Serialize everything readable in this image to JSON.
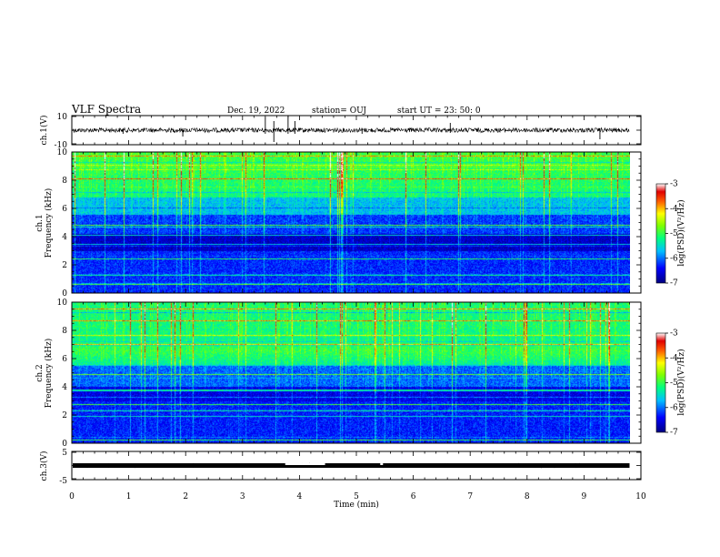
{
  "header": {
    "title": "VLF Spectra",
    "date": "Dec. 19, 2022",
    "station": "station= OUJ",
    "start": "start  UT =   23: 50: 0"
  },
  "chart_data": [
    {
      "type": "line",
      "panel": "ch1-waveform",
      "ylabel": "ch.1(V)",
      "ylim": [
        -10,
        10
      ],
      "yticks": [
        "10",
        "-10"
      ],
      "baseline_value": 0,
      "xlim": [
        0,
        10
      ]
    },
    {
      "type": "heatmap",
      "panel": "ch1-spectrogram",
      "ylabel_line1": "ch.1",
      "ylabel_line2": "Frequency (kHz)",
      "ylim": [
        0,
        10
      ],
      "yticks": [
        "0",
        "2",
        "4",
        "6",
        "8",
        "10"
      ],
      "xlim": [
        0,
        10
      ],
      "data_end_min": 9.8,
      "colorbar": {
        "label": "log(PSD)(V²/Hz)",
        "range": [
          -7,
          -3
        ],
        "ticks": [
          "-3",
          "-4",
          "-5",
          "-6",
          "-7"
        ]
      }
    },
    {
      "type": "heatmap",
      "panel": "ch2-spectrogram",
      "ylabel_line1": "ch.2",
      "ylabel_line2": "Frequency (kHz)",
      "ylim": [
        0,
        10
      ],
      "yticks": [
        "0",
        "2",
        "4",
        "6",
        "8",
        "10"
      ],
      "xlim": [
        0,
        10
      ],
      "data_end_min": 9.8,
      "colorbar": {
        "label": "log(PSD)(V²/Hz)",
        "range": [
          -7,
          -3
        ],
        "ticks": [
          "-3",
          "-4",
          "-5",
          "-6",
          "-7"
        ]
      }
    },
    {
      "type": "line",
      "panel": "ch3-waveform",
      "ylabel": "ch.3(V)",
      "ylim": [
        -5,
        5
      ],
      "yticks": [
        "5",
        "-5"
      ],
      "baseline_value": 0,
      "xlim": [
        0,
        10
      ]
    }
  ],
  "xaxis": {
    "label": "Time (min)",
    "ticks": [
      "0",
      "1",
      "2",
      "3",
      "4",
      "5",
      "6",
      "7",
      "8",
      "9",
      "10"
    ]
  }
}
